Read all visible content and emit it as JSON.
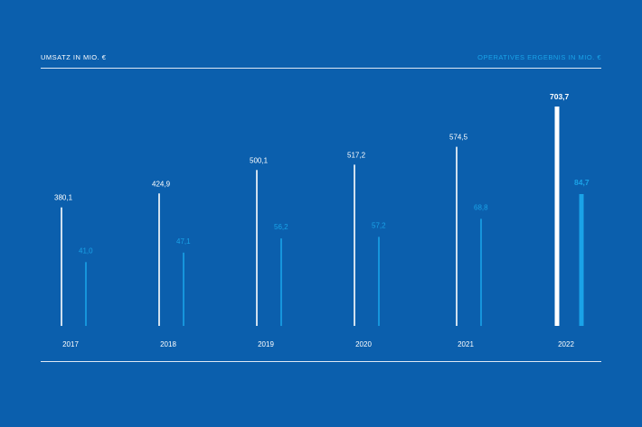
{
  "header": {
    "left_label": "UMSATZ IN MIO. €",
    "right_label": "OPERATIVES ERGEBNIS IN MIO. €"
  },
  "colors": {
    "background": "#0b5fad",
    "revenue": "#ffffff",
    "operating_result": "#1aa3e8"
  },
  "chart_data": {
    "type": "bar",
    "categories": [
      "2017",
      "2018",
      "2019",
      "2020",
      "2021",
      "2022"
    ],
    "series": [
      {
        "name": "UMSATZ IN MIO. €",
        "values": [
          380.1,
          424.9,
          500.1,
          517.2,
          574.5,
          703.7
        ],
        "labels": [
          "380,1",
          "424,9",
          "500,1",
          "517,2",
          "574,5",
          "703,7"
        ]
      },
      {
        "name": "OPERATIVES ERGEBNIS IN MIO. €",
        "values": [
          41.0,
          47.1,
          56.2,
          57.2,
          68.8,
          84.7
        ],
        "labels": [
          "41,0",
          "47,1",
          "56,2",
          "57,2",
          "68,8",
          "84,7"
        ]
      }
    ],
    "highlight_category": "2022",
    "legend": "top"
  }
}
